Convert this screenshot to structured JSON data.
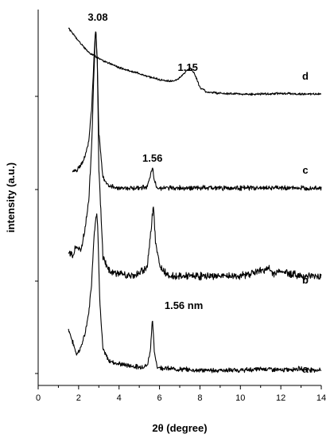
{
  "chart_data": {
    "type": "line",
    "xlabel": "2θ (degree)",
    "ylabel": "intensity (a.u.)",
    "xlim": [
      0,
      14
    ],
    "x_ticks": [
      0,
      2,
      4,
      6,
      8,
      10,
      12,
      14
    ],
    "y_ticks_labeled": false,
    "grid": false,
    "legend": "none",
    "series": [
      {
        "name": "a",
        "label": "a",
        "peaks": [
          {
            "x": 2.9,
            "relative_height": 1.0
          },
          {
            "x": 5.65,
            "relative_height": 0.35
          }
        ],
        "points": [
          [
            1.5,
            0.28
          ],
          [
            1.7,
            0.2
          ],
          [
            1.9,
            0.12
          ],
          [
            2.1,
            0.16
          ],
          [
            2.3,
            0.24
          ],
          [
            2.5,
            0.38
          ],
          [
            2.65,
            0.58
          ],
          [
            2.75,
            0.85
          ],
          [
            2.85,
            0.98
          ],
          [
            2.9,
            1.0
          ],
          [
            2.95,
            0.9
          ],
          [
            3.05,
            0.45
          ],
          [
            3.2,
            0.15
          ],
          [
            3.5,
            0.08
          ],
          [
            4.0,
            0.06
          ],
          [
            4.5,
            0.05
          ],
          [
            5.0,
            0.04
          ],
          [
            5.4,
            0.05
          ],
          [
            5.55,
            0.15
          ],
          [
            5.65,
            0.35
          ],
          [
            5.75,
            0.12
          ],
          [
            5.9,
            0.04
          ],
          [
            6.5,
            0.03
          ],
          [
            8.0,
            0.02
          ],
          [
            10.0,
            0.02
          ],
          [
            11.3,
            0.03
          ],
          [
            12.0,
            0.02
          ],
          [
            12.8,
            0.03
          ],
          [
            14.0,
            0.02
          ]
        ]
      },
      {
        "name": "b",
        "label": "b",
        "peaks": [
          {
            "x": 2.85,
            "relative_height": 1.0
          },
          {
            "x": 5.7,
            "relative_height": 0.31
          }
        ],
        "points": [
          [
            1.5,
            0.12
          ],
          [
            1.7,
            0.1
          ],
          [
            1.9,
            0.14
          ],
          [
            2.1,
            0.12
          ],
          [
            2.3,
            0.2
          ],
          [
            2.5,
            0.32
          ],
          [
            2.65,
            0.55
          ],
          [
            2.75,
            0.82
          ],
          [
            2.82,
            0.97
          ],
          [
            2.85,
            1.0
          ],
          [
            2.92,
            0.88
          ],
          [
            3.0,
            0.45
          ],
          [
            3.2,
            0.1
          ],
          [
            3.5,
            0.04
          ],
          [
            4.0,
            0.03
          ],
          [
            4.5,
            0.02
          ],
          [
            5.0,
            0.03
          ],
          [
            5.4,
            0.06
          ],
          [
            5.55,
            0.18
          ],
          [
            5.7,
            0.31
          ],
          [
            5.8,
            0.16
          ],
          [
            6.0,
            0.06
          ],
          [
            6.5,
            0.02
          ],
          [
            8.0,
            0.02
          ],
          [
            10.0,
            0.02
          ],
          [
            11.4,
            0.05
          ],
          [
            11.6,
            0.03
          ],
          [
            12.0,
            0.04
          ],
          [
            13.0,
            0.02
          ],
          [
            14.0,
            0.02
          ]
        ]
      },
      {
        "name": "c",
        "label": "c",
        "peaks": [
          {
            "x": 2.85,
            "relative_height": 1.0
          },
          {
            "x": 5.65,
            "relative_height": 0.14
          }
        ],
        "points": [
          [
            1.7,
            0.12
          ],
          [
            1.9,
            0.12
          ],
          [
            2.1,
            0.15
          ],
          [
            2.3,
            0.2
          ],
          [
            2.5,
            0.3
          ],
          [
            2.65,
            0.52
          ],
          [
            2.75,
            0.8
          ],
          [
            2.82,
            0.97
          ],
          [
            2.85,
            1.0
          ],
          [
            2.92,
            0.8
          ],
          [
            3.0,
            0.35
          ],
          [
            3.2,
            0.08
          ],
          [
            3.5,
            0.02
          ],
          [
            4.0,
            0.01
          ],
          [
            4.5,
            0.01
          ],
          [
            5.0,
            0.01
          ],
          [
            5.4,
            0.02
          ],
          [
            5.55,
            0.08
          ],
          [
            5.65,
            0.14
          ],
          [
            5.75,
            0.05
          ],
          [
            5.9,
            0.01
          ],
          [
            7.0,
            0.01
          ],
          [
            9.0,
            0.01
          ],
          [
            11.0,
            0.01
          ],
          [
            13.0,
            0.01
          ],
          [
            14.0,
            0.01
          ]
        ]
      },
      {
        "name": "d",
        "label": "d",
        "peaks": [
          {
            "x": 7.5,
            "relative_height": 0.25
          }
        ],
        "points": [
          [
            1.5,
            0.9
          ],
          [
            1.8,
            0.8
          ],
          [
            2.1,
            0.7
          ],
          [
            2.5,
            0.58
          ],
          [
            3.0,
            0.5
          ],
          [
            3.5,
            0.44
          ],
          [
            4.0,
            0.38
          ],
          [
            4.5,
            0.34
          ],
          [
            5.0,
            0.3
          ],
          [
            5.5,
            0.26
          ],
          [
            6.0,
            0.22
          ],
          [
            6.5,
            0.2
          ],
          [
            6.9,
            0.22
          ],
          [
            7.2,
            0.3
          ],
          [
            7.5,
            0.38
          ],
          [
            7.7,
            0.32
          ],
          [
            8.0,
            0.12
          ],
          [
            8.3,
            0.06
          ],
          [
            9.0,
            0.04
          ],
          [
            10.0,
            0.03
          ],
          [
            11.0,
            0.03
          ],
          [
            12.0,
            0.04
          ],
          [
            13.0,
            0.03
          ],
          [
            14.0,
            0.03
          ]
        ]
      }
    ],
    "annotations": [
      {
        "text": "3.08",
        "x": 2.9,
        "series": "d"
      },
      {
        "text": "1.15",
        "x": 7.5,
        "series": "d"
      },
      {
        "text": "1.56",
        "x": 5.65,
        "series": "c"
      },
      {
        "text": "1.56 nm",
        "x": 6.2,
        "series": "a"
      }
    ]
  }
}
